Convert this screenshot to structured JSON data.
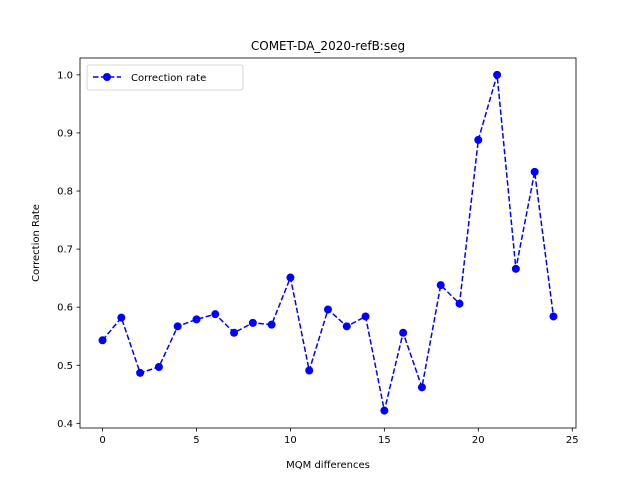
{
  "chart_data": {
    "type": "line",
    "title": "COMET-DA_2020-refB:seg",
    "xlabel": "MQM differences",
    "ylabel": "Correction Rate",
    "xlim": [
      -1.2,
      25.2
    ],
    "ylim": [
      0.392,
      1.029
    ],
    "xticks": [
      0,
      5,
      10,
      15,
      20,
      25
    ],
    "yticks": [
      0.4,
      0.5,
      0.6,
      0.7,
      0.8,
      0.9,
      1.0
    ],
    "grid": false,
    "legend_position": "top-left",
    "series": [
      {
        "name": "Correction rate",
        "color": "#0000ff",
        "line_style": "dashed",
        "marker": "circle",
        "x": [
          0,
          1,
          2,
          3,
          4,
          5,
          6,
          7,
          8,
          9,
          10,
          11,
          12,
          13,
          14,
          15,
          16,
          17,
          18,
          19,
          20,
          21,
          22,
          23,
          24
        ],
        "y": [
          0.543,
          0.582,
          0.487,
          0.497,
          0.567,
          0.579,
          0.588,
          0.556,
          0.573,
          0.57,
          0.651,
          0.491,
          0.596,
          0.567,
          0.584,
          0.422,
          0.556,
          0.462,
          0.638,
          0.606,
          0.888,
          1.0,
          0.666,
          0.833,
          0.584
        ]
      }
    ]
  }
}
